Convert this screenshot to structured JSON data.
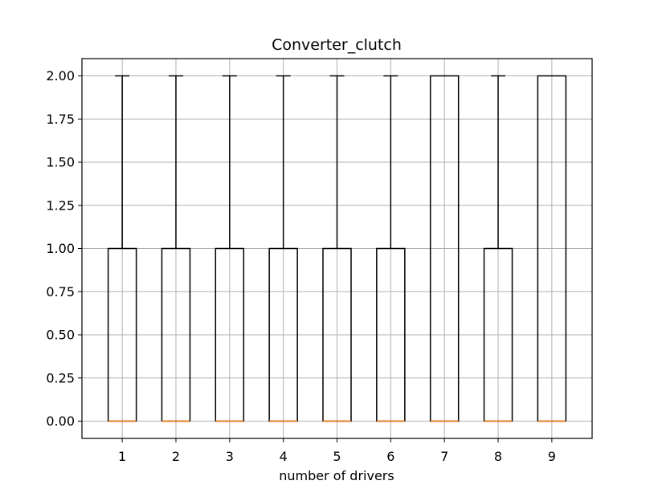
{
  "chart_data": {
    "type": "boxplot",
    "title": "Converter_clutch",
    "xlabel": "number of drivers",
    "ylabel": "",
    "ylim": [
      -0.1,
      2.1
    ],
    "yticks": [
      0.0,
      0.25,
      0.5,
      0.75,
      1.0,
      1.25,
      1.5,
      1.75,
      2.0
    ],
    "ytick_labels": [
      "0.00",
      "0.25",
      "0.50",
      "0.75",
      "1.00",
      "1.25",
      "1.50",
      "1.75",
      "2.00"
    ],
    "grid": true,
    "categories": [
      "1",
      "2",
      "3",
      "4",
      "5",
      "6",
      "7",
      "8",
      "9"
    ],
    "boxes": [
      {
        "category": "1",
        "whisker_low": 0,
        "q1": 0,
        "median": 0,
        "q3": 1,
        "whisker_high": 2
      },
      {
        "category": "2",
        "whisker_low": 0,
        "q1": 0,
        "median": 0,
        "q3": 1,
        "whisker_high": 2
      },
      {
        "category": "3",
        "whisker_low": 0,
        "q1": 0,
        "median": 0,
        "q3": 1,
        "whisker_high": 2
      },
      {
        "category": "4",
        "whisker_low": 0,
        "q1": 0,
        "median": 0,
        "q3": 1,
        "whisker_high": 2
      },
      {
        "category": "5",
        "whisker_low": 0,
        "q1": 0,
        "median": 0,
        "q3": 1,
        "whisker_high": 2
      },
      {
        "category": "6",
        "whisker_low": 0,
        "q1": 0,
        "median": 0,
        "q3": 1,
        "whisker_high": 2
      },
      {
        "category": "7",
        "whisker_low": 0,
        "q1": 0,
        "median": 0,
        "q3": 2,
        "whisker_high": 2
      },
      {
        "category": "8",
        "whisker_low": 0,
        "q1": 0,
        "median": 0,
        "q3": 1,
        "whisker_high": 2
      },
      {
        "category": "9",
        "whisker_low": 0,
        "q1": 0,
        "median": 0,
        "q3": 2,
        "whisker_high": 2
      }
    ],
    "colors": {
      "box": "#000000",
      "median": "#ff7f0e",
      "grid": "#b0b0b0"
    }
  }
}
